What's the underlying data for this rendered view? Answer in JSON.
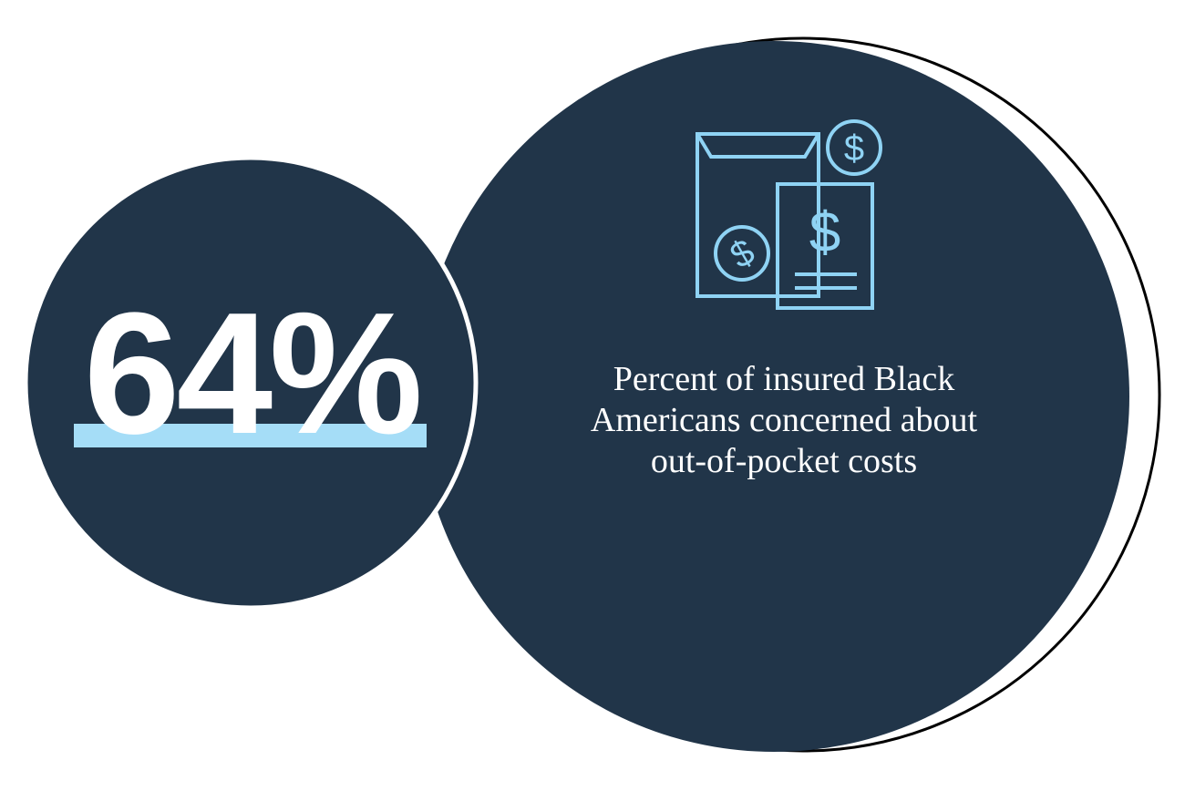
{
  "statistic": "64%",
  "description": [
    "Percent of insured Black",
    "Americans concerned about",
    "out-of-pocket costs"
  ]
}
